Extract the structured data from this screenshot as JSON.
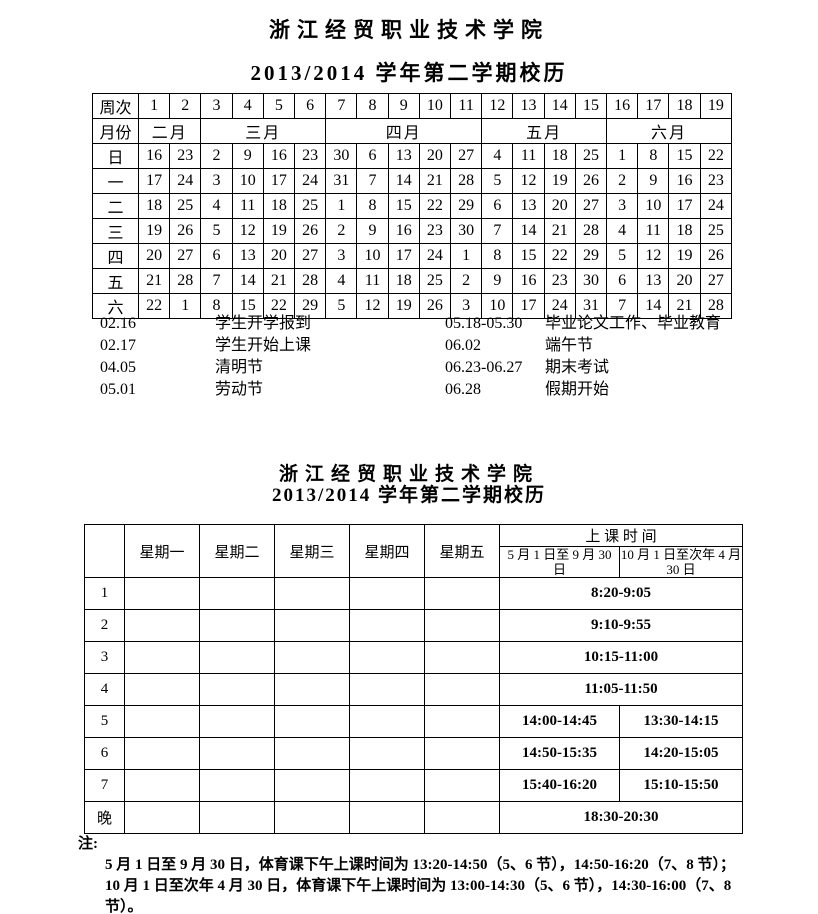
{
  "titles": {
    "school": "浙江经贸职业技术学院",
    "semester": "2013/2014 学年第二学期校历"
  },
  "calendar": {
    "week_row_label": "周次",
    "week_numbers": [
      "1",
      "2",
      "3",
      "4",
      "5",
      "6",
      "7",
      "8",
      "9",
      "10",
      "11",
      "12",
      "13",
      "14",
      "15",
      "16",
      "17",
      "18",
      "19"
    ],
    "month_row_label": "月份",
    "months": [
      {
        "label": "二月",
        "weeks": 2
      },
      {
        "label": "三月",
        "weeks": 4
      },
      {
        "label": "四月",
        "weeks": 5
      },
      {
        "label": "五月",
        "weeks": 4
      },
      {
        "label": "六月",
        "weeks": 4
      }
    ],
    "day_rows": [
      {
        "label": "日",
        "dates": [
          "16",
          "23",
          "2",
          "9",
          "16",
          "23",
          "30",
          "6",
          "13",
          "20",
          "27",
          "4",
          "11",
          "18",
          "25",
          "1",
          "8",
          "15",
          "22"
        ]
      },
      {
        "label": "一",
        "dates": [
          "17",
          "24",
          "3",
          "10",
          "17",
          "24",
          "31",
          "7",
          "14",
          "21",
          "28",
          "5",
          "12",
          "19",
          "26",
          "2",
          "9",
          "16",
          "23"
        ]
      },
      {
        "label": "二",
        "dates": [
          "18",
          "25",
          "4",
          "11",
          "18",
          "25",
          "1",
          "8",
          "15",
          "22",
          "29",
          "6",
          "13",
          "20",
          "27",
          "3",
          "10",
          "17",
          "24"
        ]
      },
      {
        "label": "三",
        "dates": [
          "19",
          "26",
          "5",
          "12",
          "19",
          "26",
          "2",
          "9",
          "16",
          "23",
          "30",
          "7",
          "14",
          "21",
          "28",
          "4",
          "11",
          "18",
          "25"
        ]
      },
      {
        "label": "四",
        "dates": [
          "20",
          "27",
          "6",
          "13",
          "20",
          "27",
          "3",
          "10",
          "17",
          "24",
          "1",
          "8",
          "15",
          "22",
          "29",
          "5",
          "12",
          "19",
          "26"
        ]
      },
      {
        "label": "五",
        "dates": [
          "21",
          "28",
          "7",
          "14",
          "21",
          "28",
          "4",
          "11",
          "18",
          "25",
          "2",
          "9",
          "16",
          "23",
          "30",
          "6",
          "13",
          "20",
          "27"
        ]
      },
      {
        "label": "六",
        "dates": [
          "22",
          "1",
          "8",
          "15",
          "22",
          "29",
          "5",
          "12",
          "19",
          "26",
          "3",
          "10",
          "17",
          "24",
          "31",
          "7",
          "14",
          "21",
          "28"
        ]
      }
    ]
  },
  "events": [
    {
      "date": "02.16",
      "desc": "学生开学报到",
      "date2": "05.18-05.30",
      "desc2": "毕业论文工作、毕业教育"
    },
    {
      "date": "02.17",
      "desc": "学生开始上课",
      "date2": "06.02",
      "desc2": "端午节"
    },
    {
      "date": "04.05",
      "desc": "清明节",
      "date2": "06.23-06.27",
      "desc2": "期末考试"
    },
    {
      "date": "05.01",
      "desc": "劳动节",
      "date2": "06.28",
      "desc2": "假期开始"
    }
  ],
  "schedule": {
    "weekday_headers": [
      "星期一",
      "星期二",
      "星期三",
      "星期四",
      "星期五"
    ],
    "class_time_header": "上 课 时  间",
    "period_headers": [
      "5 月 1 日至 9 月 30 日",
      "10 月 1 日至次年 4 月 30 日"
    ],
    "rows": [
      {
        "label": "1",
        "time_merged": "8:20-9:05"
      },
      {
        "label": "2",
        "time_merged": "9:10-9:55"
      },
      {
        "label": "3",
        "time_merged": "10:15-11:00"
      },
      {
        "label": "4",
        "time_merged": "11:05-11:50"
      },
      {
        "label": "5",
        "time_summer": "14:00-14:45",
        "time_winter": "13:30-14:15"
      },
      {
        "label": "6",
        "time_summer": "14:50-15:35",
        "time_winter": "14:20-15:05"
      },
      {
        "label": "7",
        "time_summer": "15:40-16:20",
        "time_winter": "15:10-15:50"
      },
      {
        "label": "晚",
        "time_merged": "18:30-20:30"
      }
    ]
  },
  "notes": {
    "label": "注:",
    "lines": [
      "5 月 1 日至 9 月 30 日，体育课下午上课时间为 13:20-14:50（5、6 节），14:50-16:20（7、8 节）；",
      "10 月 1 日至次年 4 月 30 日，体育课下午上课时间为 13:00-14:30（5、6 节），14:30-16:00（7、8 节）。"
    ]
  }
}
